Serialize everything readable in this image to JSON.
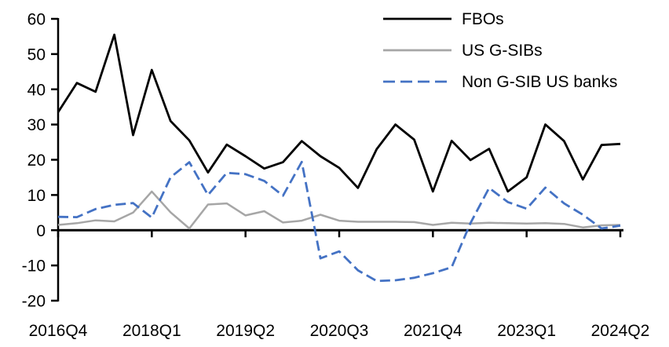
{
  "chart_data": {
    "type": "line",
    "title": "",
    "xlabel": "",
    "ylabel": "",
    "ylim": [
      -20,
      60
    ],
    "y_tick_step": 10,
    "y_tick_labels": [
      "60",
      "50",
      "40",
      "30",
      "20",
      "10",
      "0",
      "-10",
      "-20"
    ],
    "x_tick_labels": [
      "2016Q4",
      "2018Q1",
      "2019Q2",
      "2020Q3",
      "2021Q4",
      "2023Q1",
      "2024Q2"
    ],
    "x_tick_every": 5,
    "grid": false,
    "legend_position": "top-right",
    "x_categories": [
      "2016Q4",
      "2017Q1",
      "2017Q2",
      "2017Q3",
      "2017Q4",
      "2018Q1",
      "2018Q2",
      "2018Q3",
      "2018Q4",
      "2019Q1",
      "2019Q2",
      "2019Q3",
      "2019Q4",
      "2020Q1",
      "2020Q2",
      "2020Q3",
      "2020Q4",
      "2021Q1",
      "2021Q2",
      "2021Q3",
      "2021Q4",
      "2022Q1",
      "2022Q2",
      "2022Q3",
      "2022Q4",
      "2023Q1",
      "2023Q2",
      "2023Q3",
      "2023Q4",
      "2024Q1",
      "2024Q2"
    ],
    "series": [
      {
        "name": "FBOs",
        "color": "#000000",
        "style": "solid",
        "values": [
          33.5,
          41.8,
          39.3,
          55.5,
          27.0,
          45.5,
          31.0,
          25.5,
          16.4,
          24.3,
          21.0,
          17.5,
          19.3,
          25.3,
          21.0,
          17.7,
          12.0,
          23.0,
          30.0,
          25.7,
          11.0,
          25.4,
          19.9,
          23.1,
          11.0,
          15.0,
          30.0,
          25.3,
          14.4,
          24.2,
          24.5
        ]
      },
      {
        "name": "US G-SIBs",
        "color": "#a6a6a6",
        "style": "solid",
        "values": [
          1.5,
          2.0,
          2.8,
          2.5,
          5.0,
          11.0,
          5.1,
          0.5,
          7.3,
          7.6,
          4.2,
          5.4,
          2.2,
          2.7,
          4.4,
          2.7,
          2.4,
          2.4,
          2.4,
          2.3,
          1.5,
          2.1,
          1.9,
          2.1,
          2.0,
          1.9,
          2.0,
          1.8,
          0.8,
          1.4,
          1.5
        ]
      },
      {
        "name": "Non G-SIB US banks",
        "color": "#4472c4",
        "style": "dashed",
        "values": [
          3.8,
          3.7,
          6.0,
          7.2,
          7.7,
          3.6,
          15.0,
          19.3,
          10.0,
          16.3,
          15.9,
          14.0,
          9.8,
          19.4,
          -8.0,
          -6.0,
          -11.4,
          -14.4,
          -14.2,
          -13.5,
          -12.2,
          -10.5,
          2.0,
          12.0,
          8.0,
          6.1,
          12.1,
          7.6,
          4.4,
          0.5,
          1.3
        ]
      }
    ]
  }
}
